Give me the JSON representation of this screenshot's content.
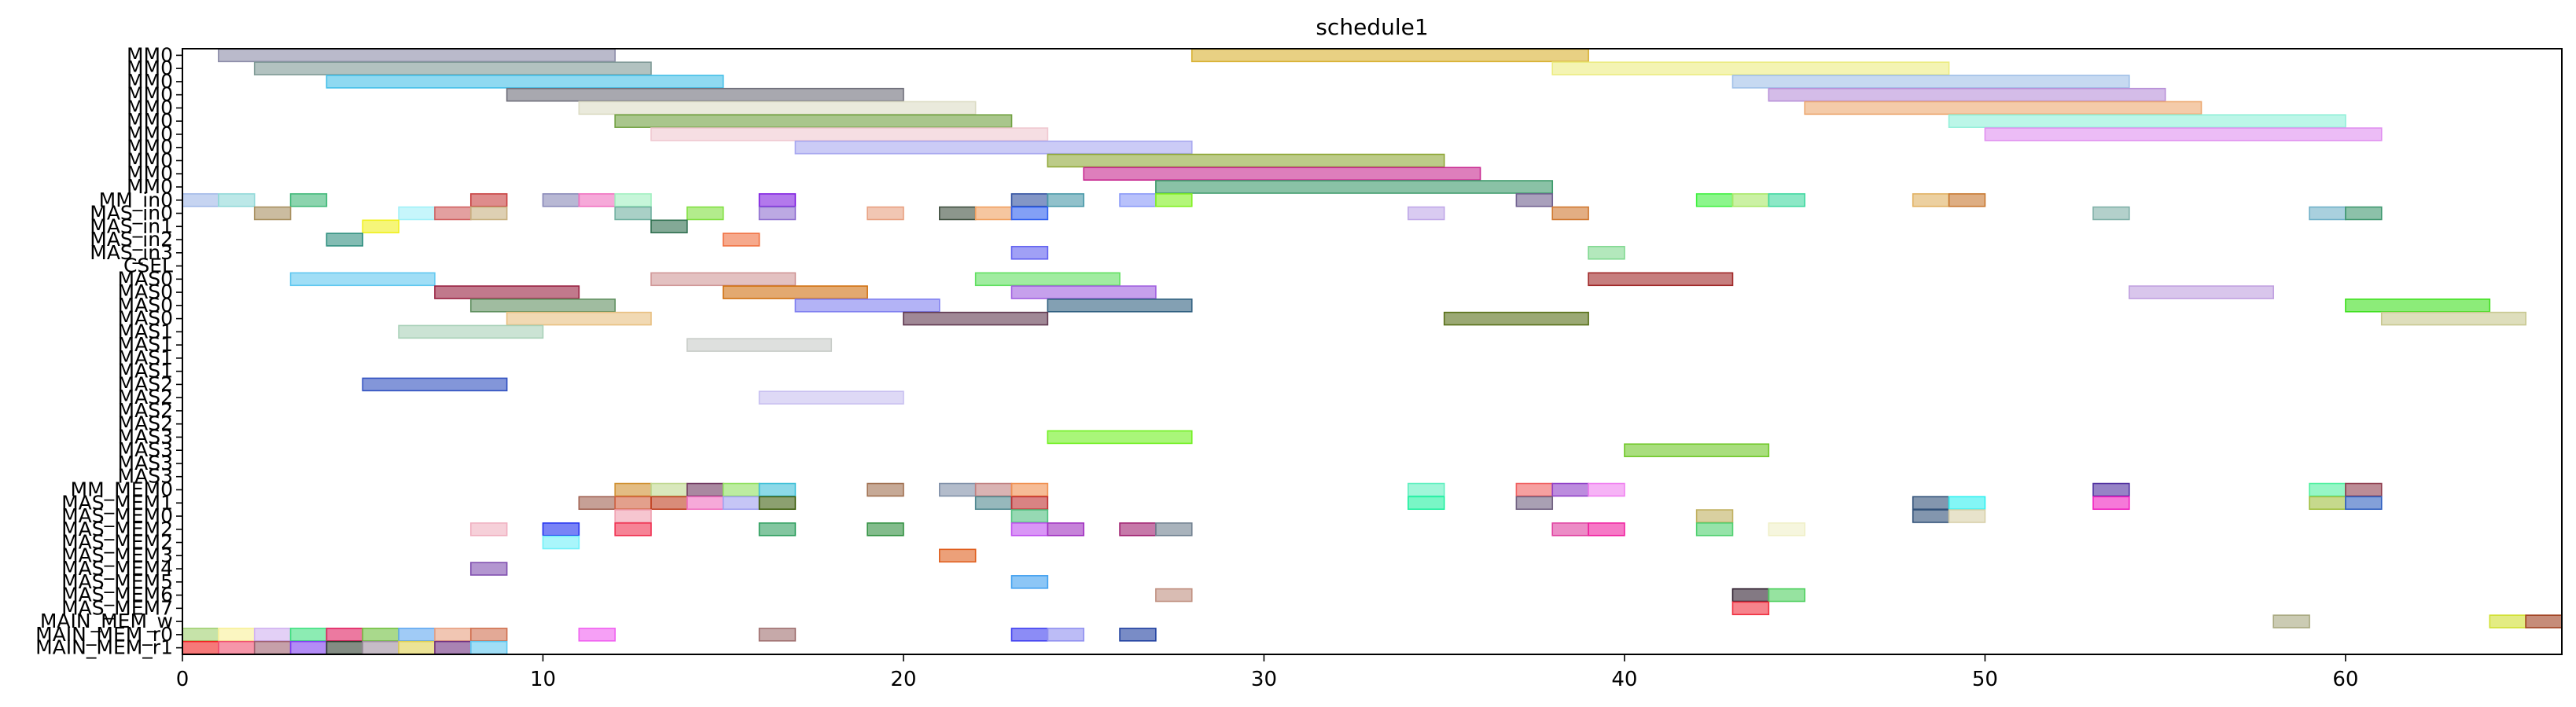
{
  "chart_data": {
    "type": "gantt",
    "title": "schedule1",
    "xlabel": "",
    "ylabel": "",
    "xlim": [
      0,
      66
    ],
    "x_ticks": [
      0,
      10,
      20,
      30,
      40,
      50,
      60
    ],
    "rows": [
      "MM0",
      "MM0",
      "MM0",
      "MM0",
      "MM0",
      "MM0",
      "MM0",
      "MM0",
      "MM0",
      "MM0",
      "MM0",
      "MM_in0",
      "MAS_in0",
      "MAS_in1",
      "MAS_in2",
      "MAS_in3",
      "CSEL",
      "MAS0",
      "MAS0",
      "MAS0",
      "MAS0",
      "MAS1",
      "MAS1",
      "MAS1",
      "MAS1",
      "MAS2",
      "MAS2",
      "MAS2",
      "MAS2",
      "MAS3",
      "MAS3",
      "MAS3",
      "MAS3",
      "MM_MEM0",
      "MAS_MEM1",
      "MAS_MEM0",
      "MAS_MEM2",
      "MAS_MEM2",
      "MAS_MEM3",
      "MAS_MEM4",
      "MAS_MEM5",
      "MAS_MEM6",
      "MAS_MEM7",
      "MAIN_MEM_w",
      "MAIN_MEM_r0",
      "MAIN_MEM_r1"
    ],
    "tasks": [
      {
        "row": 0,
        "start": 1,
        "end": 12,
        "color": "#8c8ca8"
      },
      {
        "row": 0,
        "start": 28,
        "end": 39,
        "color": "#d8b030"
      },
      {
        "row": 1,
        "start": 2,
        "end": 13,
        "color": "#7f9a96"
      },
      {
        "row": 1,
        "start": 38,
        "end": 49,
        "color": "#ecec80"
      },
      {
        "row": 2,
        "start": 4,
        "end": 15,
        "color": "#44bfe8"
      },
      {
        "row": 2,
        "start": 43,
        "end": 54,
        "color": "#a0c0e8"
      },
      {
        "row": 3,
        "start": 9,
        "end": 20,
        "color": "#6e6e7a"
      },
      {
        "row": 3,
        "start": 44,
        "end": 55,
        "color": "#b890d8"
      },
      {
        "row": 4,
        "start": 11,
        "end": 22,
        "color": "#dcdcc4"
      },
      {
        "row": 4,
        "start": 45,
        "end": 56,
        "color": "#eca870"
      },
      {
        "row": 5,
        "start": 12,
        "end": 23,
        "color": "#70a040"
      },
      {
        "row": 5,
        "start": 49,
        "end": 60,
        "color": "#90f0d8"
      },
      {
        "row": 6,
        "start": 13,
        "end": 24,
        "color": "#f0c8d0"
      },
      {
        "row": 6,
        "start": 50,
        "end": 61,
        "color": "#e090f0"
      },
      {
        "row": 7,
        "start": 17,
        "end": 28,
        "color": "#a8a8f0"
      },
      {
        "row": 8,
        "start": 24,
        "end": 35,
        "color": "#90a838"
      },
      {
        "row": 9,
        "start": 25,
        "end": 36,
        "color": "#c82890"
      },
      {
        "row": 10,
        "start": 27,
        "end": 38,
        "color": "#3c9a6a"
      },
      {
        "row": 11,
        "start": 0,
        "end": 1,
        "color": "#a0b8e8"
      },
      {
        "row": 11,
        "start": 1,
        "end": 2,
        "color": "#90d8d8"
      },
      {
        "row": 11,
        "start": 3,
        "end": 4,
        "color": "#40b878"
      },
      {
        "row": 11,
        "start": 8,
        "end": 9,
        "color": "#c84040"
      },
      {
        "row": 11,
        "start": 10,
        "end": 11,
        "color": "#8888b8"
      },
      {
        "row": 11,
        "start": 11,
        "end": 12,
        "color": "#f070c0"
      },
      {
        "row": 11,
        "start": 12,
        "end": 13,
        "color": "#a0f0c0"
      },
      {
        "row": 11,
        "start": 16,
        "end": 17,
        "color": "#8020e0"
      },
      {
        "row": 11,
        "start": 23,
        "end": 24,
        "color": "#3050a0"
      },
      {
        "row": 11,
        "start": 24,
        "end": 25,
        "color": "#4898a8"
      },
      {
        "row": 11,
        "start": 26,
        "end": 27,
        "color": "#8898f8"
      },
      {
        "row": 11,
        "start": 27,
        "end": 28,
        "color": "#80f020"
      },
      {
        "row": 11,
        "start": 37,
        "end": 38,
        "color": "#706090"
      },
      {
        "row": 11,
        "start": 42,
        "end": 43,
        "color": "#40f040"
      },
      {
        "row": 11,
        "start": 43,
        "end": 44,
        "color": "#a8e868"
      },
      {
        "row": 11,
        "start": 44,
        "end": 45,
        "color": "#40d8a0"
      },
      {
        "row": 11,
        "start": 48,
        "end": 49,
        "color": "#e0b060"
      },
      {
        "row": 11,
        "start": 49,
        "end": 50,
        "color": "#c87830"
      },
      {
        "row": 12,
        "start": 2,
        "end": 3,
        "color": "#a89060"
      },
      {
        "row": 12,
        "start": 6,
        "end": 7,
        "color": "#a0f0f8"
      },
      {
        "row": 12,
        "start": 7,
        "end": 8,
        "color": "#d06060"
      },
      {
        "row": 12,
        "start": 8,
        "end": 9,
        "color": "#c8b080"
      },
      {
        "row": 12,
        "start": 12,
        "end": 13,
        "color": "#70b0a0"
      },
      {
        "row": 12,
        "start": 14,
        "end": 15,
        "color": "#80e040"
      },
      {
        "row": 12,
        "start": 16,
        "end": 17,
        "color": "#9070d0"
      },
      {
        "row": 12,
        "start": 19,
        "end": 20,
        "color": "#e8a080"
      },
      {
        "row": 12,
        "start": 21,
        "end": 22,
        "color": "#405040"
      },
      {
        "row": 12,
        "start": 22,
        "end": 23,
        "color": "#f0a060"
      },
      {
        "row": 12,
        "start": 23,
        "end": 24,
        "color": "#3060f0"
      },
      {
        "row": 12,
        "start": 34,
        "end": 35,
        "color": "#c0a8e8"
      },
      {
        "row": 12,
        "start": 38,
        "end": 39,
        "color": "#d07830"
      },
      {
        "row": 12,
        "start": 53,
        "end": 54,
        "color": "#80b0a8"
      },
      {
        "row": 12,
        "start": 59,
        "end": 60,
        "color": "#70b0c8"
      },
      {
        "row": 12,
        "start": 60,
        "end": 61,
        "color": "#409870"
      },
      {
        "row": 13,
        "start": 5,
        "end": 6,
        "color": "#f0f020"
      },
      {
        "row": 13,
        "start": 13,
        "end": 14,
        "color": "#307050"
      },
      {
        "row": 14,
        "start": 4,
        "end": 5,
        "color": "#309080"
      },
      {
        "row": 14,
        "start": 15,
        "end": 16,
        "color": "#f07040"
      },
      {
        "row": 15,
        "start": 23,
        "end": 24,
        "color": "#6060f0"
      },
      {
        "row": 15,
        "start": 39,
        "end": 40,
        "color": "#80d890"
      },
      {
        "row": 17,
        "start": 3,
        "end": 7,
        "color": "#60c8f0"
      },
      {
        "row": 17,
        "start": 13,
        "end": 17,
        "color": "#d09898"
      },
      {
        "row": 17,
        "start": 22,
        "end": 26,
        "color": "#60e060"
      },
      {
        "row": 17,
        "start": 39,
        "end": 43,
        "color": "#a02828"
      },
      {
        "row": 18,
        "start": 7,
        "end": 11,
        "color": "#982040"
      },
      {
        "row": 18,
        "start": 15,
        "end": 19,
        "color": "#d07010"
      },
      {
        "row": 18,
        "start": 23,
        "end": 27,
        "color": "#a060e0"
      },
      {
        "row": 18,
        "start": 54,
        "end": 58,
        "color": "#c0a0e0"
      },
      {
        "row": 19,
        "start": 8,
        "end": 12,
        "color": "#609060"
      },
      {
        "row": 19,
        "start": 17,
        "end": 21,
        "color": "#8080f0"
      },
      {
        "row": 19,
        "start": 24,
        "end": 28,
        "color": "#306080"
      },
      {
        "row": 19,
        "start": 60,
        "end": 64,
        "color": "#40e020"
      },
      {
        "row": 20,
        "start": 9,
        "end": 13,
        "color": "#e8c080"
      },
      {
        "row": 20,
        "start": 20,
        "end": 24,
        "color": "#603850"
      },
      {
        "row": 20,
        "start": 35,
        "end": 39,
        "color": "#587018"
      },
      {
        "row": 20,
        "start": 61,
        "end": 65,
        "color": "#c8c890"
      },
      {
        "row": 21,
        "start": 6,
        "end": 10,
        "color": "#a8d0b8"
      },
      {
        "row": 22,
        "start": 14,
        "end": 18,
        "color": "#c8ccc8"
      },
      {
        "row": 25,
        "start": 5,
        "end": 9,
        "color": "#3050c0"
      },
      {
        "row": 26,
        "start": 16,
        "end": 20,
        "color": "#c8c0f0"
      },
      {
        "row": 29,
        "start": 24,
        "end": 28,
        "color": "#70f020"
      },
      {
        "row": 30,
        "start": 40,
        "end": 44,
        "color": "#70c828"
      },
      {
        "row": 33,
        "start": 12,
        "end": 13,
        "color": "#d09030"
      },
      {
        "row": 33,
        "start": 13,
        "end": 14,
        "color": "#c0d890"
      },
      {
        "row": 33,
        "start": 14,
        "end": 15,
        "color": "#703860"
      },
      {
        "row": 33,
        "start": 15,
        "end": 16,
        "color": "#90e060"
      },
      {
        "row": 33,
        "start": 16,
        "end": 17,
        "color": "#40c0d8"
      },
      {
        "row": 33,
        "start": 19,
        "end": 20,
        "color": "#a07050"
      },
      {
        "row": 33,
        "start": 21,
        "end": 22,
        "color": "#8090a8"
      },
      {
        "row": 33,
        "start": 22,
        "end": 23,
        "color": "#c08080"
      },
      {
        "row": 33,
        "start": 23,
        "end": 24,
        "color": "#f09050"
      },
      {
        "row": 33,
        "start": 34,
        "end": 35,
        "color": "#60f0c0"
      },
      {
        "row": 33,
        "start": 37,
        "end": 38,
        "color": "#f06060"
      },
      {
        "row": 33,
        "start": 38,
        "end": 39,
        "color": "#9040c8"
      },
      {
        "row": 33,
        "start": 39,
        "end": 40,
        "color": "#f080f0"
      },
      {
        "row": 33,
        "start": 53,
        "end": 54,
        "color": "#5030a0"
      },
      {
        "row": 33,
        "start": 59,
        "end": 60,
        "color": "#50f0a0"
      },
      {
        "row": 33,
        "start": 60,
        "end": 61,
        "color": "#904050"
      },
      {
        "row": 34,
        "start": 11,
        "end": 12,
        "color": "#a06050"
      },
      {
        "row": 34,
        "start": 12,
        "end": 13,
        "color": "#d06040"
      },
      {
        "row": 34,
        "start": 13,
        "end": 14,
        "color": "#c04020"
      },
      {
        "row": 34,
        "start": 14,
        "end": 15,
        "color": "#f070c0"
      },
      {
        "row": 34,
        "start": 15,
        "end": 16,
        "color": "#a0a0f0"
      },
      {
        "row": 34,
        "start": 16,
        "end": 17,
        "color": "#406010"
      },
      {
        "row": 34,
        "start": 22,
        "end": 23,
        "color": "#508890"
      },
      {
        "row": 34,
        "start": 23,
        "end": 24,
        "color": "#c03030"
      },
      {
        "row": 34,
        "start": 34,
        "end": 35,
        "color": "#20f0a0"
      },
      {
        "row": 34,
        "start": 37,
        "end": 38,
        "color": "#706080"
      },
      {
        "row": 34,
        "start": 48,
        "end": 49,
        "color": "#305078"
      },
      {
        "row": 34,
        "start": 49,
        "end": 50,
        "color": "#30f0f0"
      },
      {
        "row": 34,
        "start": 53,
        "end": 54,
        "color": "#f020c0"
      },
      {
        "row": 34,
        "start": 59,
        "end": 60,
        "color": "#a0c040"
      },
      {
        "row": 34,
        "start": 60,
        "end": 61,
        "color": "#3060c0"
      },
      {
        "row": 35,
        "start": 12,
        "end": 13,
        "color": "#f0a0b0"
      },
      {
        "row": 35,
        "start": 23,
        "end": 24,
        "color": "#50c080"
      },
      {
        "row": 35,
        "start": 42,
        "end": 43,
        "color": "#c0b060"
      },
      {
        "row": 35,
        "start": 48,
        "end": 49,
        "color": "#305078"
      },
      {
        "row": 35,
        "start": 49,
        "end": 50,
        "color": "#d8d0a8"
      },
      {
        "row": 36,
        "start": 8,
        "end": 9,
        "color": "#f0b0c0"
      },
      {
        "row": 36,
        "start": 10,
        "end": 11,
        "color": "#2030f0"
      },
      {
        "row": 36,
        "start": 12,
        "end": 13,
        "color": "#f03050"
      },
      {
        "row": 36,
        "start": 16,
        "end": 17,
        "color": "#30a060"
      },
      {
        "row": 36,
        "start": 19,
        "end": 20,
        "color": "#309040"
      },
      {
        "row": 36,
        "start": 23,
        "end": 24,
        "color": "#c050f0"
      },
      {
        "row": 36,
        "start": 24,
        "end": 25,
        "color": "#a030c0"
      },
      {
        "row": 36,
        "start": 26,
        "end": 27,
        "color": "#a02070"
      },
      {
        "row": 36,
        "start": 27,
        "end": 28,
        "color": "#708090"
      },
      {
        "row": 36,
        "start": 38,
        "end": 39,
        "color": "#e040a0"
      },
      {
        "row": 36,
        "start": 39,
        "end": 40,
        "color": "#f020a0"
      },
      {
        "row": 36,
        "start": 42,
        "end": 43,
        "color": "#50d070"
      },
      {
        "row": 36,
        "start": 44,
        "end": 45,
        "color": "#f0f0c8"
      },
      {
        "row": 37,
        "start": 10,
        "end": 11,
        "color": "#70f0f8"
      },
      {
        "row": 38,
        "start": 21,
        "end": 22,
        "color": "#e06020"
      },
      {
        "row": 39,
        "start": 8,
        "end": 9,
        "color": "#8050b0"
      },
      {
        "row": 40,
        "start": 23,
        "end": 24,
        "color": "#40a0f0"
      },
      {
        "row": 41,
        "start": 27,
        "end": 28,
        "color": "#c09080"
      },
      {
        "row": 41,
        "start": 43,
        "end": 44,
        "color": "#302030"
      },
      {
        "row": 41,
        "start": 44,
        "end": 45,
        "color": "#50d060"
      },
      {
        "row": 42,
        "start": 43,
        "end": 44,
        "color": "#f03040"
      },
      {
        "row": 43,
        "start": 58,
        "end": 59,
        "color": "#a8a880"
      },
      {
        "row": 43,
        "start": 64,
        "end": 65,
        "color": "#d0e030"
      },
      {
        "row": 43,
        "start": 65,
        "end": 66,
        "color": "#a04020"
      },
      {
        "row": 44,
        "start": 0,
        "end": 1,
        "color": "#a0d070"
      },
      {
        "row": 44,
        "start": 1,
        "end": 2,
        "color": "#f8f098"
      },
      {
        "row": 44,
        "start": 2,
        "end": 3,
        "color": "#d0b0f0"
      },
      {
        "row": 44,
        "start": 3,
        "end": 4,
        "color": "#40e080"
      },
      {
        "row": 44,
        "start": 4,
        "end": 5,
        "color": "#e02060"
      },
      {
        "row": 44,
        "start": 5,
        "end": 6,
        "color": "#70c040"
      },
      {
        "row": 44,
        "start": 6,
        "end": 7,
        "color": "#60a8f0"
      },
      {
        "row": 44,
        "start": 7,
        "end": 8,
        "color": "#e8a080"
      },
      {
        "row": 44,
        "start": 8,
        "end": 9,
        "color": "#d07050"
      },
      {
        "row": 44,
        "start": 11,
        "end": 12,
        "color": "#f060f0"
      },
      {
        "row": 44,
        "start": 16,
        "end": 17,
        "color": "#a07070"
      },
      {
        "row": 44,
        "start": 23,
        "end": 24,
        "color": "#4040f0"
      },
      {
        "row": 44,
        "start": 24,
        "end": 25,
        "color": "#9090f0"
      },
      {
        "row": 44,
        "start": 26,
        "end": 27,
        "color": "#2040a0"
      },
      {
        "row": 45,
        "start": 0,
        "end": 1,
        "color": "#f02020"
      },
      {
        "row": 45,
        "start": 1,
        "end": 2,
        "color": "#f05070"
      },
      {
        "row": 45,
        "start": 2,
        "end": 3,
        "color": "#a06070"
      },
      {
        "row": 45,
        "start": 3,
        "end": 4,
        "color": "#8040f0"
      },
      {
        "row": 45,
        "start": 4,
        "end": 5,
        "color": "#304030"
      },
      {
        "row": 45,
        "start": 5,
        "end": 6,
        "color": "#a090a0"
      },
      {
        "row": 45,
        "start": 6,
        "end": 7,
        "color": "#e0d050"
      },
      {
        "row": 45,
        "start": 7,
        "end": 8,
        "color": "#703080"
      },
      {
        "row": 45,
        "start": 8,
        "end": 9,
        "color": "#60c8f0"
      }
    ]
  }
}
